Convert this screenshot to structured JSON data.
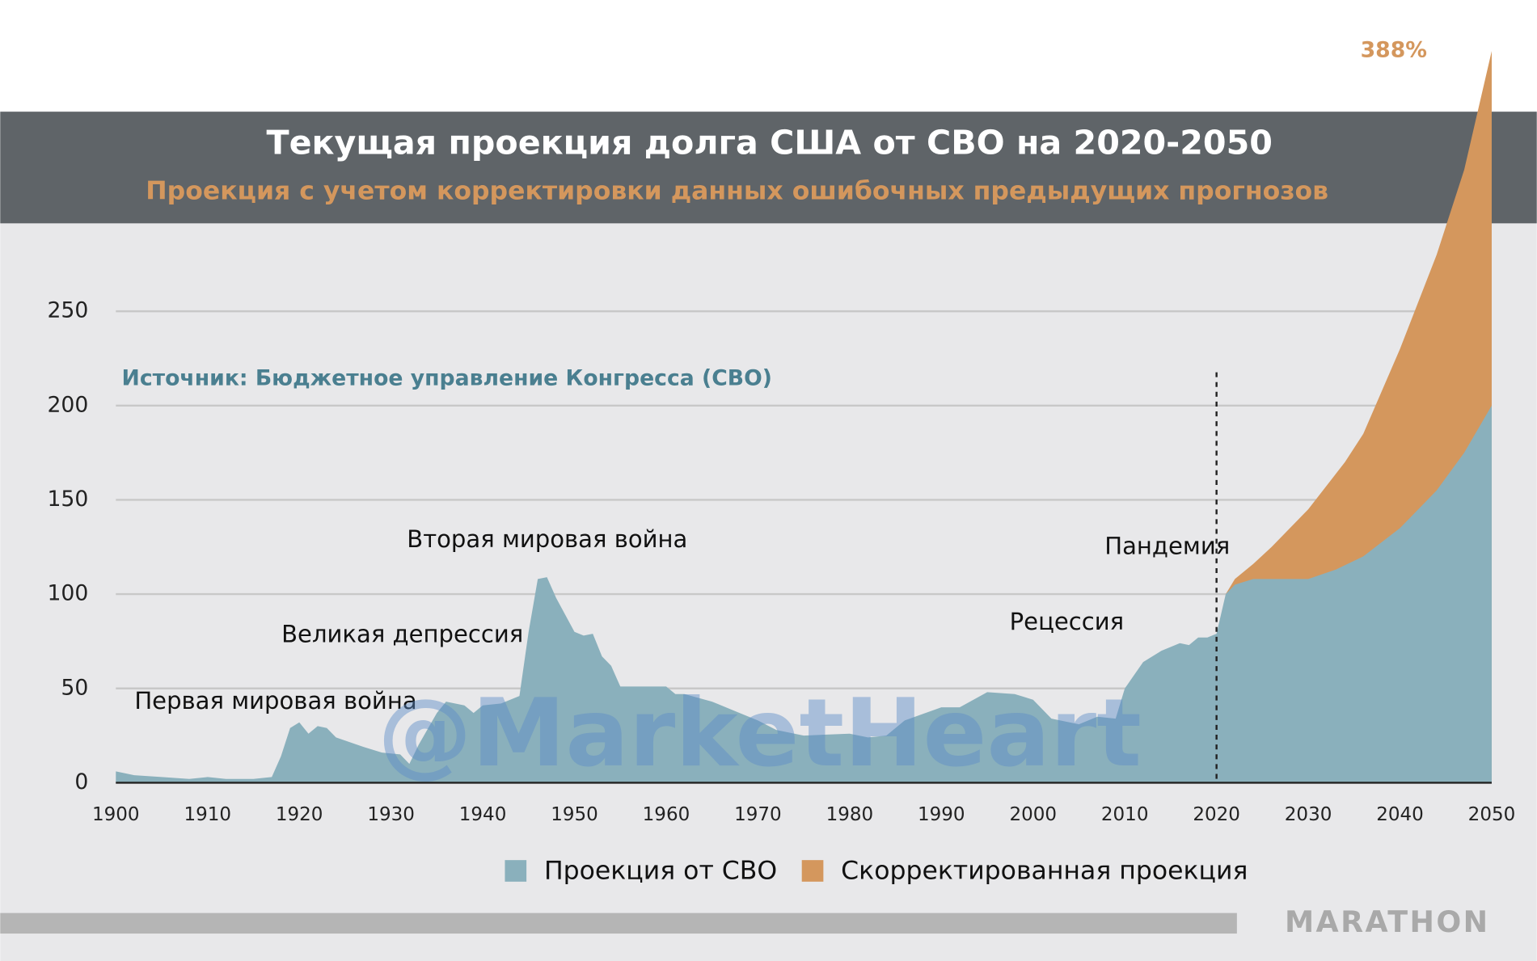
{
  "chart_data": {
    "type": "area",
    "title": "Текущая проекция долга США от СВО на 2020-2050",
    "subtitle": "Проекция с учетом корректировки данных ошибочных предыдущих прогнозов",
    "source": "Источник: Бюджетное управление Конгресса (СВО)",
    "watermark": "@MarketHeart",
    "brand": "MARATHON",
    "annotations": [
      "Первая мировая война",
      "Великая депрессия",
      "Вторая мировая война",
      "Рецессия",
      "Пандемия"
    ],
    "divider_x": 2020,
    "xlim": [
      1900,
      2050
    ],
    "xticks": [
      1900,
      1910,
      1920,
      1930,
      1940,
      1950,
      1960,
      1970,
      1980,
      1990,
      2000,
      2010,
      2020,
      2030,
      2040,
      2050
    ],
    "ylim": [
      0,
      400
    ],
    "yticks": [
      0,
      50,
      100,
      150,
      200,
      250
    ],
    "grid": true,
    "series": [
      {
        "name": "Проекция от СВО",
        "color": "#8ab0bc",
        "x": [
          1900,
          1902,
          1905,
          1908,
          1910,
          1912,
          1915,
          1917,
          1918,
          1919,
          1920,
          1921,
          1922,
          1923,
          1924,
          1927,
          1929,
          1931,
          1932,
          1933,
          1935,
          1936,
          1938,
          1939,
          1940,
          1942,
          1943,
          1944,
          1945,
          1946,
          1947,
          1948,
          1950,
          1951,
          1952,
          1953,
          1954,
          1955,
          1960,
          1961,
          1962,
          1965,
          1968,
          1970,
          1972,
          1975,
          1980,
          1982,
          1984,
          1986,
          1990,
          1992,
          1995,
          1998,
          2000,
          2002,
          2005,
          2007,
          2009,
          2010,
          2012,
          2014,
          2016,
          2017,
          2018,
          2019,
          2020,
          2021,
          2022,
          2024,
          2028,
          2030,
          2033,
          2036,
          2040,
          2044,
          2047,
          2050
        ],
        "values": [
          6,
          4,
          3,
          2,
          3,
          2,
          2,
          3,
          14,
          29,
          32,
          26,
          30,
          29,
          24,
          19,
          16,
          15,
          10,
          20,
          37,
          43,
          41,
          37,
          41,
          42,
          44,
          46,
          80,
          108,
          109,
          98,
          80,
          78,
          79,
          67,
          62,
          51,
          51,
          47,
          47,
          43,
          37,
          33,
          28,
          25,
          26,
          24,
          25,
          33,
          40,
          40,
          48,
          47,
          44,
          34,
          31,
          35,
          34,
          50,
          64,
          70,
          74,
          73,
          77,
          77,
          79,
          100,
          105,
          108,
          108,
          108,
          113,
          120,
          135,
          155,
          175,
          200
        ]
      },
      {
        "name": "Скорректированная проекция",
        "color": "#d4975d",
        "x": [
          2021,
          2022,
          2024,
          2026,
          2030,
          2034,
          2036,
          2040,
          2044,
          2047,
          2050
        ],
        "values": [
          100,
          108,
          116,
          125,
          145,
          170,
          185,
          230,
          280,
          325,
          388
        ],
        "value_labels": [
          null,
          null,
          null,
          null,
          null,
          null,
          null,
          null,
          null,
          null,
          "388%"
        ]
      }
    ]
  }
}
